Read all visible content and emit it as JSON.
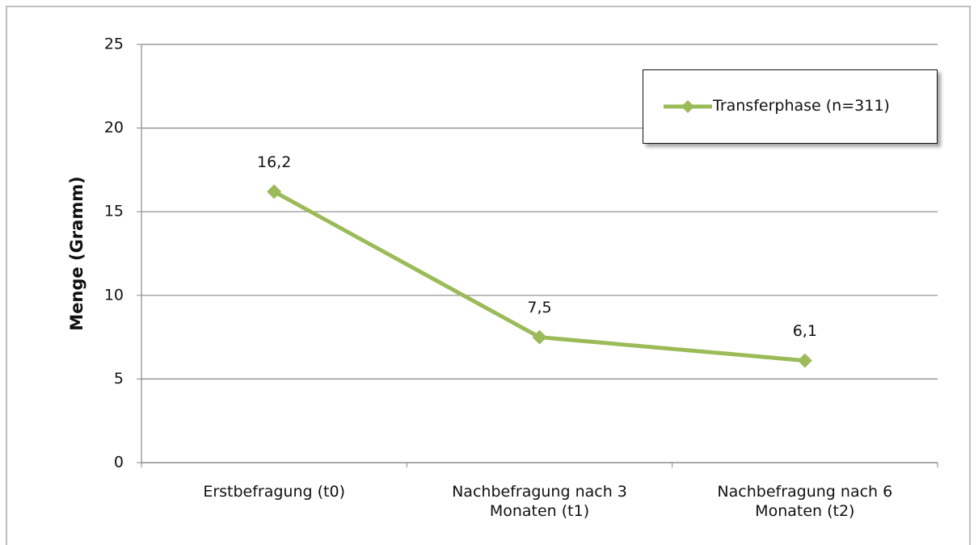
{
  "chart_data": {
    "type": "line",
    "y_label": "Menge (Gramm)",
    "categories": [
      "Erstbefragung (t0)",
      "Nachbefragung nach 3 Monaten (t1)",
      "Nachbefragung nach 6 Monaten (t2)"
    ],
    "series": [
      {
        "name": "Transferphase (n=311)",
        "color": "#9bbb59",
        "values": [
          16.2,
          7.5,
          6.1
        ],
        "value_labels": [
          "16,2",
          "7,5",
          "6,1"
        ]
      }
    ],
    "ylim": [
      0,
      25
    ],
    "yticks": [
      0,
      5,
      10,
      15,
      20,
      25
    ],
    "grid": true,
    "legend": "upper right"
  }
}
